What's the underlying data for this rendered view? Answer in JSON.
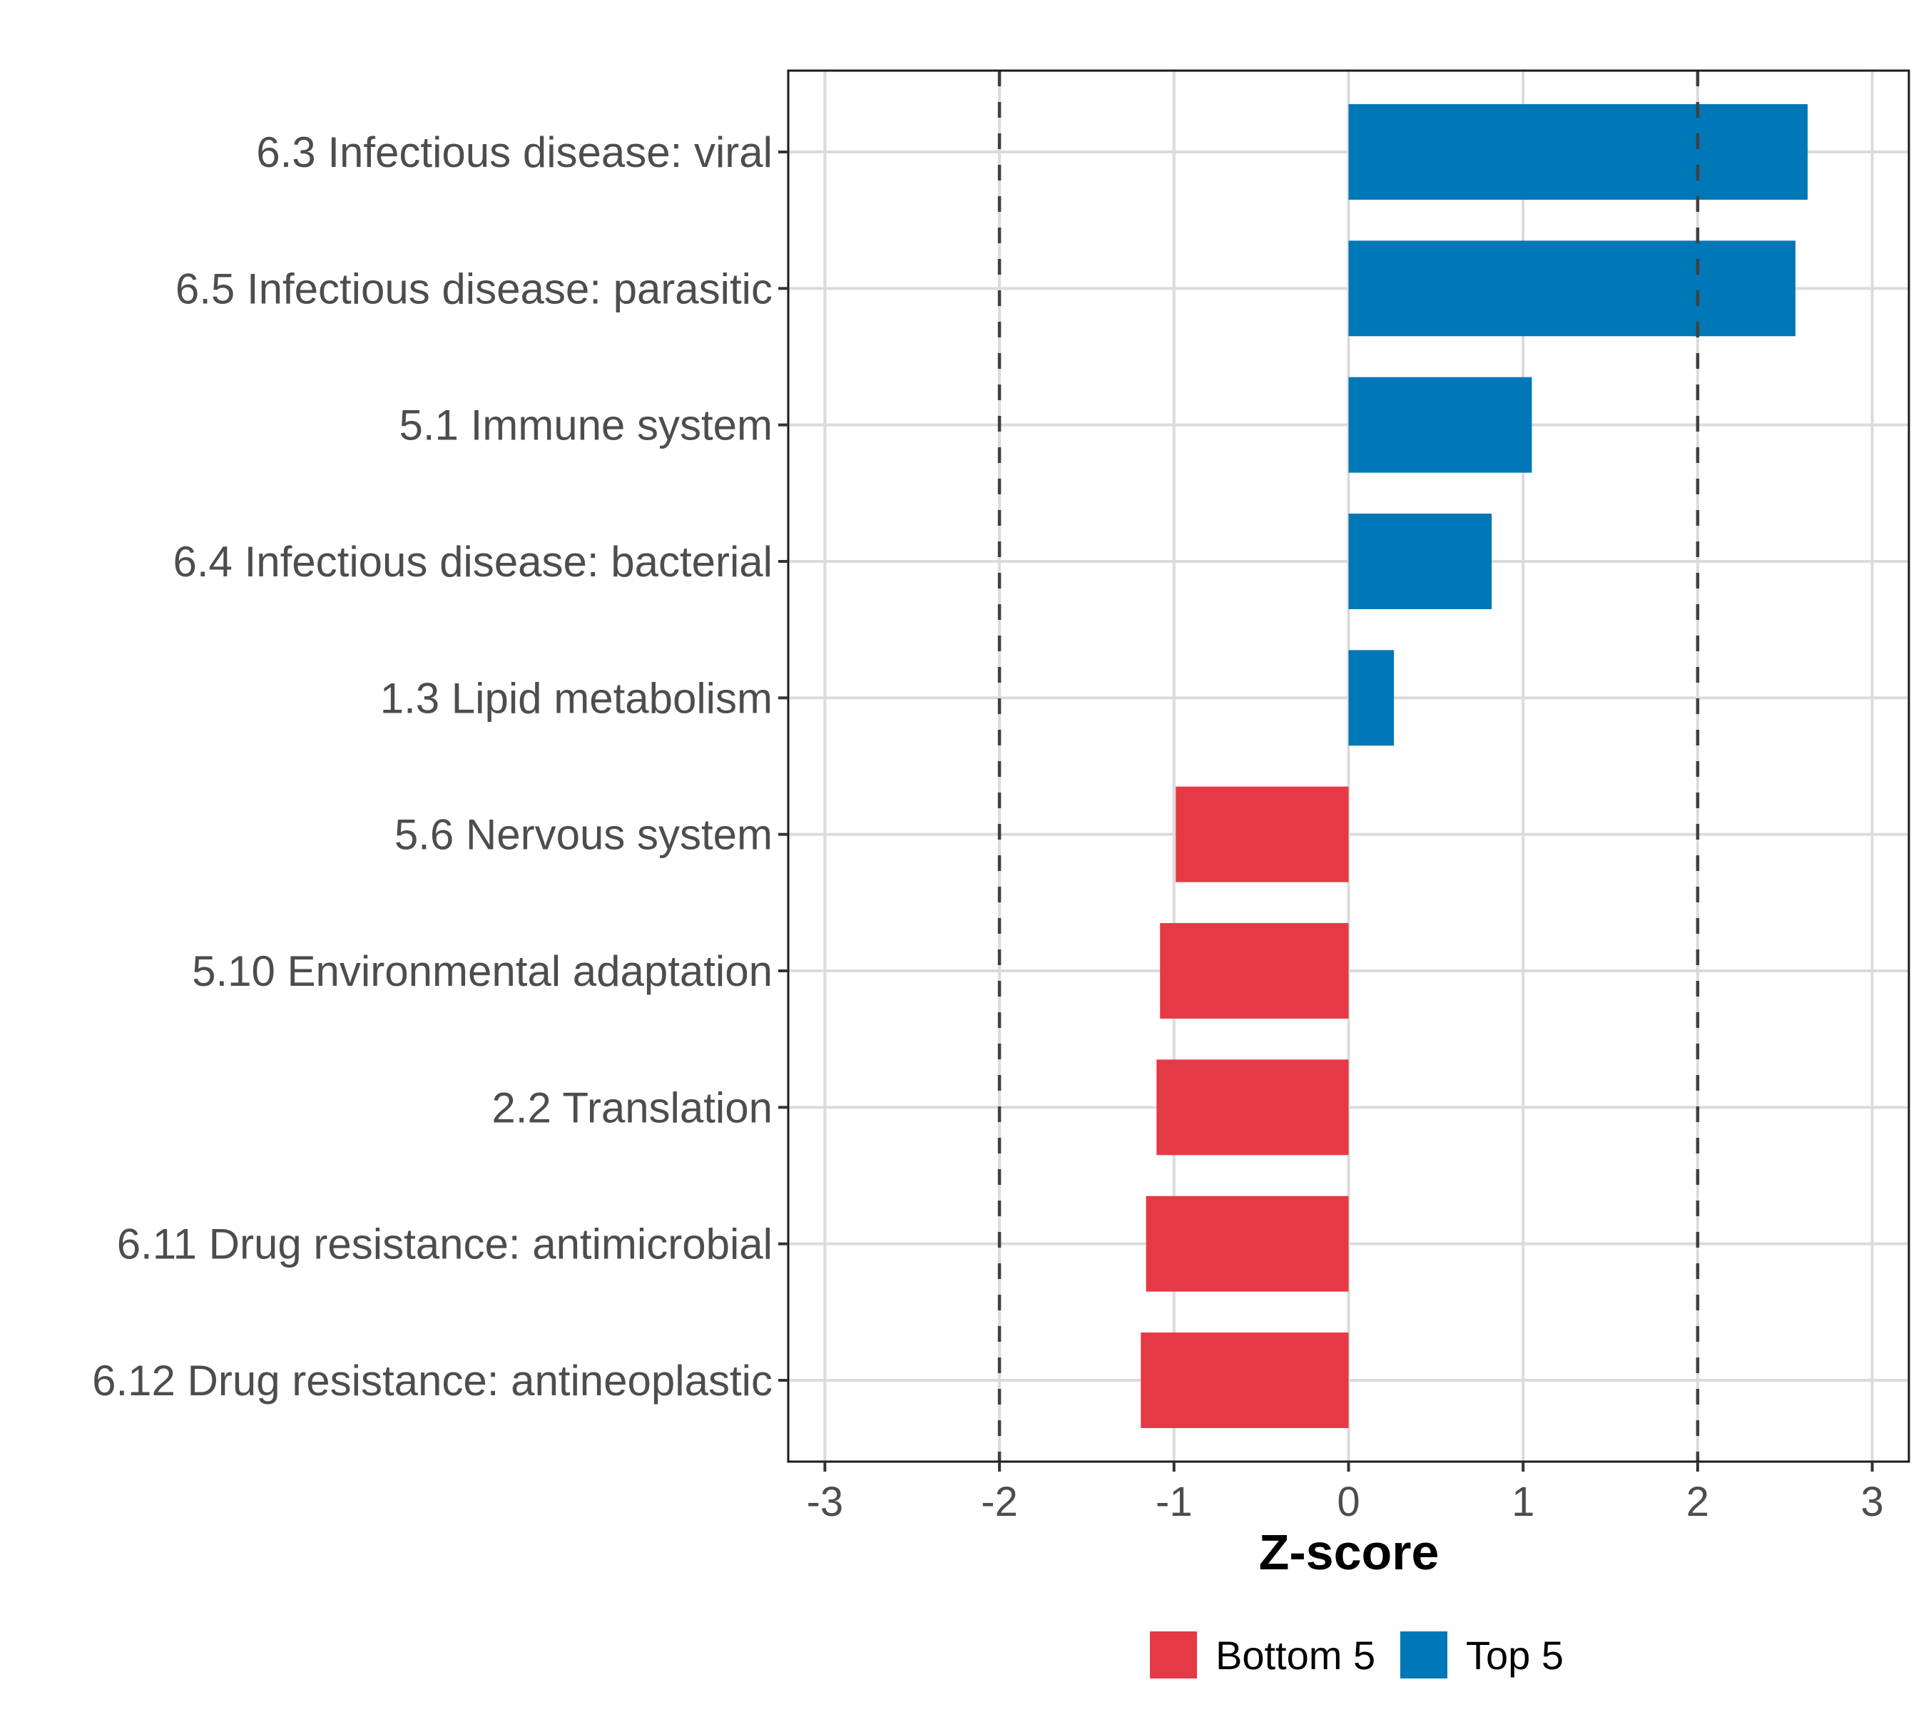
{
  "chart_data": {
    "type": "bar",
    "orientation": "horizontal",
    "title": "",
    "xlabel": "Z-score",
    "ylabel": "",
    "xlim": [
      -3.21,
      3.21
    ],
    "xticks": [
      -3,
      -2,
      -1,
      0,
      1,
      2,
      3
    ],
    "xtick_labels": [
      "-3",
      "-2",
      "-1",
      "0",
      "1",
      "2",
      "3"
    ],
    "reference_lines": [
      -2,
      2
    ],
    "grid": true,
    "categories": [
      "6.3 Infectious disease: viral",
      "6.5 Infectious disease: parasitic",
      "5.1 Immune system",
      "6.4 Infectious disease: bacterial",
      "1.3 Lipid metabolism",
      "5.6 Nervous system",
      "5.10 Environmental adaptation",
      "2.2 Translation",
      "6.11 Drug resistance: antimicrobial",
      "6.12 Drug resistance: antineoplastic"
    ],
    "values": [
      2.63,
      2.56,
      1.05,
      0.82,
      0.26,
      -0.99,
      -1.08,
      -1.1,
      -1.16,
      -1.19
    ],
    "groups": [
      "Top 5",
      "Top 5",
      "Top 5",
      "Top 5",
      "Top 5",
      "Bottom 5",
      "Bottom 5",
      "Bottom 5",
      "Bottom 5",
      "Bottom 5"
    ],
    "legend": {
      "position": "bottom",
      "entries": [
        {
          "label": "Bottom 5",
          "color": "#E63946"
        },
        {
          "label": "Top 5",
          "color": "#0077B6"
        }
      ]
    },
    "colors": {
      "Top 5": "#0077B6",
      "Bottom 5": "#E63946"
    }
  }
}
